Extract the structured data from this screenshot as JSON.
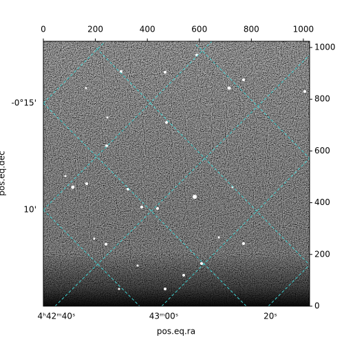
{
  "chart_data": {
    "type": "image",
    "xlabel": "pos.eq.ra",
    "ylabel": "pos.eq.dec",
    "xlim": [
      0,
      1024
    ],
    "ylim": [
      0,
      1024
    ],
    "xticks": [
      0,
      200,
      400,
      600,
      800,
      1000
    ],
    "yticks": [
      0,
      200,
      400,
      600,
      800,
      1000
    ],
    "ra_labels": [
      "4ʰ42ᵐ40ˢ",
      "43ᵐ00ˢ",
      "20ˢ"
    ],
    "dec_labels": [
      "-0°15'",
      "10'"
    ]
  }
}
